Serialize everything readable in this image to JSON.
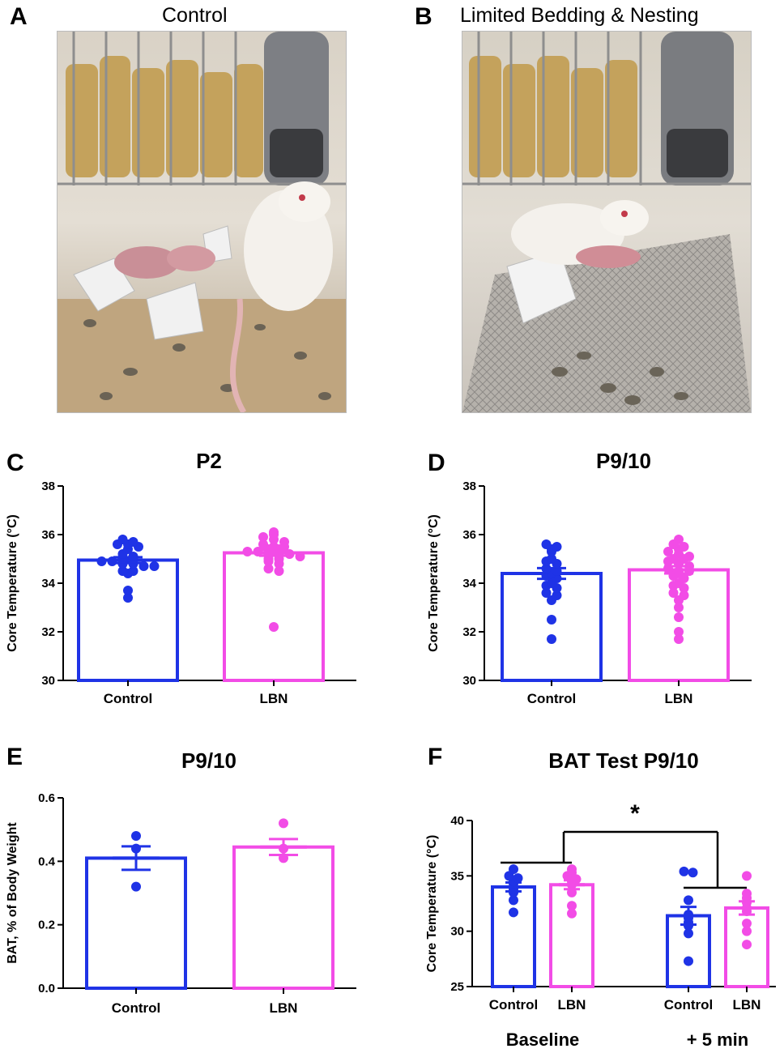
{
  "photos": {
    "a": {
      "letter": "A",
      "title": "Control"
    },
    "b": {
      "letter": "B",
      "title": "Limited Bedding & Nesting"
    }
  },
  "colors": {
    "control": "#1f33e6",
    "lbn": "#f24ce6",
    "axis": "#000000"
  },
  "chart_data": [
    {
      "panel": "C",
      "type": "bar",
      "title": "P2",
      "ylabel": "Core Temperature (°C)",
      "ylim": [
        30,
        38
      ],
      "yticks": [
        "30",
        "32",
        "34",
        "36",
        "38"
      ],
      "categories": [
        "Control",
        "LBN"
      ],
      "series": [
        {
          "name": "Control",
          "mean": 34.95,
          "sem": 0.12,
          "points": [
            35.7,
            35.8,
            35.6,
            35.6,
            35.5,
            35.4,
            35.2,
            35.1,
            35.0,
            35.0,
            34.9,
            34.9,
            34.8,
            34.8,
            34.7,
            34.7,
            34.5,
            34.5,
            34.4,
            33.7,
            33.4
          ]
        },
        {
          "name": "LBN",
          "mean": 35.25,
          "sem": 0.12,
          "points": [
            36.1,
            36.0,
            35.9,
            35.8,
            35.7,
            35.6,
            35.5,
            35.5,
            35.4,
            35.4,
            35.3,
            35.3,
            35.2,
            35.2,
            35.2,
            35.1,
            35.0,
            35.0,
            34.9,
            34.8,
            34.6,
            34.5,
            32.2
          ]
        }
      ]
    },
    {
      "panel": "D",
      "type": "bar",
      "title": "P9/10",
      "ylabel": "Core Temperature (°C)",
      "ylim": [
        30,
        38
      ],
      "yticks": [
        "30",
        "32",
        "34",
        "36",
        "38"
      ],
      "categories": [
        "Control",
        "LBN"
      ],
      "series": [
        {
          "name": "Control",
          "mean": 34.4,
          "sem": 0.22,
          "points": [
            35.6,
            35.5,
            35.4,
            35.3,
            35.0,
            34.9,
            34.8,
            34.6,
            34.5,
            34.4,
            34.3,
            34.2,
            34.0,
            33.9,
            33.8,
            33.6,
            33.5,
            33.3,
            32.5,
            31.7
          ]
        },
        {
          "name": "LBN",
          "mean": 34.55,
          "sem": 0.15,
          "points": [
            35.8,
            35.6,
            35.5,
            35.4,
            35.3,
            35.2,
            35.1,
            35.0,
            35.0,
            34.9,
            34.8,
            34.7,
            34.6,
            34.5,
            34.5,
            34.4,
            34.3,
            34.2,
            34.0,
            33.9,
            33.8,
            33.6,
            33.5,
            33.3,
            33.0,
            32.6,
            32.0,
            31.7
          ]
        }
      ]
    },
    {
      "panel": "E",
      "type": "bar",
      "title": "P9/10",
      "ylabel": "BAT, % of Body Weight",
      "ylim": [
        0,
        0.6
      ],
      "yticks": [
        "0.0",
        "0.2",
        "0.4",
        "0.6"
      ],
      "categories": [
        "Control",
        "LBN"
      ],
      "series": [
        {
          "name": "Control",
          "mean": 0.41,
          "sem": 0.037,
          "points": [
            0.48,
            0.44,
            0.32
          ]
        },
        {
          "name": "LBN",
          "mean": 0.445,
          "sem": 0.025,
          "points": [
            0.52,
            0.44,
            0.41
          ]
        }
      ]
    },
    {
      "panel": "F",
      "type": "bar",
      "title": "BAT Test P9/10",
      "ylabel": "Core Temperature (°C)",
      "ylim": [
        25,
        40
      ],
      "yticks": [
        "25",
        "30",
        "35",
        "40"
      ],
      "categories": [
        "Control",
        "LBN",
        "Control",
        "LBN"
      ],
      "groups": [
        "Baseline",
        "+ 5 min"
      ],
      "significance": "*",
      "series": [
        {
          "name": "Control",
          "group": "Baseline",
          "mean": 34.0,
          "sem": 0.4,
          "points": [
            35.6,
            35.0,
            34.8,
            34.5,
            34.3,
            33.8,
            33.5,
            32.8,
            31.7
          ]
        },
        {
          "name": "LBN",
          "group": "Baseline",
          "mean": 34.2,
          "sem": 0.4,
          "points": [
            35.6,
            35.3,
            35.0,
            34.7,
            34.5,
            34.2,
            33.5,
            32.3,
            31.6
          ]
        },
        {
          "name": "Control",
          "group": "+ 5 min",
          "mean": 31.4,
          "sem": 0.8,
          "points": [
            35.4,
            35.3,
            32.8,
            31.5,
            31.2,
            30.8,
            30.5,
            29.8,
            27.3
          ]
        },
        {
          "name": "LBN",
          "group": "+ 5 min",
          "mean": 32.1,
          "sem": 0.6,
          "points": [
            35.0,
            33.4,
            33.0,
            32.6,
            32.1,
            31.8,
            30.7,
            30.0,
            28.8
          ]
        }
      ]
    }
  ]
}
